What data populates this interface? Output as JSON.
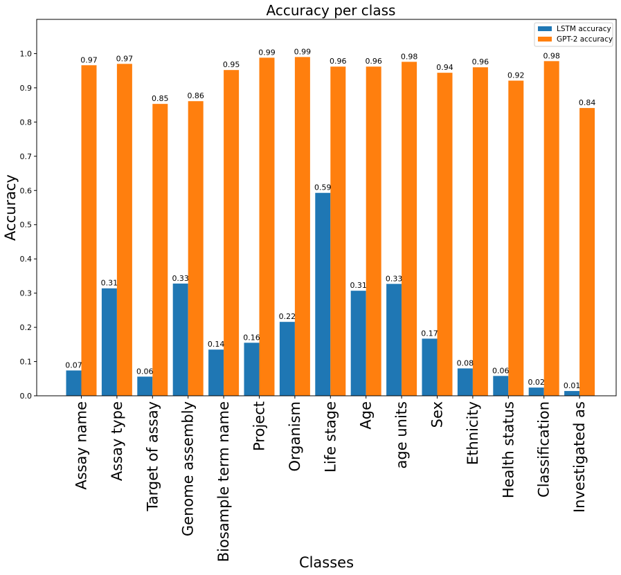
{
  "chart_data": {
    "type": "bar",
    "title": "Accuracy per class",
    "xlabel": "Classes",
    "ylabel": "Accuracy",
    "ylim": [
      0,
      1.1
    ],
    "yticks": [
      "0.0",
      "0.1",
      "0.2",
      "0.3",
      "0.4",
      "0.5",
      "0.6",
      "0.7",
      "0.8",
      "0.9",
      "1.0"
    ],
    "legend_position": "top-right",
    "grid": false,
    "categories": [
      "Assay name",
      "Assay type",
      "Target of assay",
      "Genome assembly",
      "Biosample term name",
      "Project",
      "Organism",
      "Life stage",
      "Age",
      "age units",
      "Sex",
      "Ethnicity",
      "Health status",
      "Classification",
      "Investigated as"
    ],
    "series": [
      {
        "name": "LSTM accuracy",
        "color": "#1f77b4",
        "values": [
          0.074,
          0.314,
          0.056,
          0.328,
          0.135,
          0.155,
          0.216,
          0.593,
          0.307,
          0.327,
          0.167,
          0.08,
          0.058,
          0.024,
          0.014
        ],
        "labels": [
          "0.07",
          "0.31",
          "0.06",
          "0.33",
          "0.14",
          "0.16",
          "0.22",
          "0.59",
          "0.31",
          "0.33",
          "0.17",
          "0.08",
          "0.06",
          "0.02",
          "0.01"
        ]
      },
      {
        "name": "GPT-2 accuracy",
        "color": "#ff7f0e",
        "values": [
          0.966,
          0.97,
          0.853,
          0.861,
          0.952,
          0.988,
          0.99,
          0.962,
          0.962,
          0.976,
          0.944,
          0.96,
          0.921,
          0.978,
          0.841
        ],
        "labels": [
          "0.97",
          "0.97",
          "0.85",
          "0.86",
          "0.95",
          "0.99",
          "0.99",
          "0.96",
          "0.96",
          "0.98",
          "0.94",
          "0.96",
          "0.92",
          "0.98",
          "0.84"
        ]
      }
    ]
  }
}
